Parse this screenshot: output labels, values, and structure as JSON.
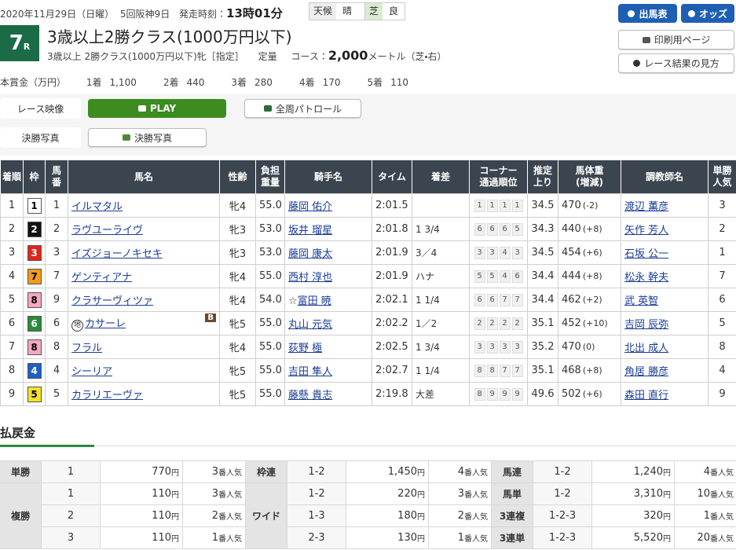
{
  "header": {
    "date": "2020年11月29日（日曜）",
    "meeting": "5回阪神9日",
    "post_time_label": "発走時刻：",
    "post_time": "13時01分",
    "weather_label": "天候",
    "weather": "晴",
    "surface": "芝",
    "going": "良",
    "race_number": "7",
    "race_suffix": "R",
    "title": "3歳以上2勝クラス(1000万円以下)",
    "conditions": "3歳以上 2勝クラス(1000万円以下)牝［指定］",
    "weight_rule": "定量",
    "course_label": "コース：",
    "distance": "2,000",
    "course_detail": "メートル（芝・右）"
  },
  "prize": {
    "label": "本賞金（万円）",
    "items": [
      {
        "place": "1着",
        "amount": "1,100"
      },
      {
        "place": "2着",
        "amount": "440"
      },
      {
        "place": "3着",
        "amount": "280"
      },
      {
        "place": "4着",
        "amount": "170"
      },
      {
        "place": "5着",
        "amount": "110"
      }
    ]
  },
  "nav_buttons": [
    "出馬表",
    "オッズ",
    "印刷用ページ",
    "レース結果の見方"
  ],
  "media": {
    "video_label": "レース映像",
    "play": "PLAY",
    "patrol": "全周パトロール",
    "photo_label": "決勝写真",
    "photo_button": "決勝写真"
  },
  "table": {
    "headers": [
      [
        "着順"
      ],
      [
        "枠"
      ],
      [
        "馬",
        "番"
      ],
      [
        "馬名"
      ],
      [
        "性齢"
      ],
      [
        "負担",
        "重量"
      ],
      [
        "騎手名"
      ],
      [
        "タイム"
      ],
      [
        "着差"
      ],
      [
        "コーナー",
        "通過順位"
      ],
      [
        "推定",
        "上り"
      ],
      [
        "馬体重",
        "(増減)"
      ],
      [
        "調教師名"
      ],
      [
        "単勝",
        "人気"
      ]
    ],
    "rows": [
      {
        "rank": "1",
        "frame": "1",
        "number": "1",
        "horse": "イルマタル",
        "sex_age": "牝4",
        "weight_carried": "55.0",
        "jockey": "藤岡 佑介",
        "time": "2:01.5",
        "corners": [
          "1",
          "1",
          "1",
          "1"
        ],
        "last3f": "34.5",
        "body_weight": "470",
        "weight_change": "(-2)",
        "trainer": "渡辺 薫彦",
        "popularity": "3"
      },
      {
        "rank": "2",
        "frame": "2",
        "number": "2",
        "horse": "ラヴユーライヴ",
        "sex_age": "牝3",
        "weight_carried": "53.0",
        "jockey": "坂井 瑠星",
        "time": "2:01.8",
        "margin": "1 3/4",
        "corners": [
          "6",
          "6",
          "6",
          "5"
        ],
        "last3f": "34.3",
        "body_weight": "440",
        "weight_change": "(+8)",
        "trainer": "矢作 芳人",
        "popularity": "2"
      },
      {
        "rank": "3",
        "frame": "3",
        "number": "3",
        "horse": "イズジョーノキセキ",
        "sex_age": "牝3",
        "weight_carried": "53.0",
        "jockey": "藤岡 康太",
        "time": "2:01.9",
        "margin": "3／4",
        "corners": [
          "3",
          "3",
          "4",
          "3"
        ],
        "last3f": "34.5",
        "body_weight": "454",
        "weight_change": "(+6)",
        "trainer": "石坂 公一",
        "popularity": "1"
      },
      {
        "rank": "4",
        "frame": "7",
        "number": "7",
        "horse": "ゲンティアナ",
        "sex_age": "牝4",
        "weight_carried": "55.0",
        "jockey": "西村 淳也",
        "time": "2:01.9",
        "margin": "ハナ",
        "corners": [
          "5",
          "5",
          "4",
          "6"
        ],
        "last3f": "34.4",
        "body_weight": "444",
        "weight_change": "(+8)",
        "trainer": "松永 幹夫",
        "popularity": "7"
      },
      {
        "rank": "5",
        "frame": "8",
        "number": "9",
        "horse": "クラサーヴィツァ",
        "sex_age": "牝4",
        "weight_carried": "54.0",
        "jockey_mark": "☆",
        "jockey": "富田 暁",
        "time": "2:02.1",
        "margin": "1 1/4",
        "corners": [
          "6",
          "6",
          "7",
          "7"
        ],
        "last3f": "34.4",
        "body_weight": "462",
        "weight_change": "(+2)",
        "trainer": "武 英智",
        "popularity": "6"
      },
      {
        "rank": "6",
        "frame": "6",
        "number": "6",
        "horse_mark": "地",
        "horse": "カサーレ",
        "blinker": "B",
        "sex_age": "牝5",
        "weight_carried": "55.0",
        "jockey": "丸山 元気",
        "time": "2:02.2",
        "margin": "1／2",
        "corners": [
          "2",
          "2",
          "2",
          "2"
        ],
        "last3f": "35.1",
        "body_weight": "452",
        "weight_change": "(+10)",
        "trainer": "吉岡 辰弥",
        "popularity": "5"
      },
      {
        "rank": "7",
        "frame": "8",
        "number": "8",
        "horse": "フラル",
        "sex_age": "牝4",
        "weight_carried": "55.0",
        "jockey": "荻野 極",
        "time": "2:02.5",
        "margin": "1 3/4",
        "corners": [
          "3",
          "3",
          "3",
          "3"
        ],
        "last3f": "35.2",
        "body_weight": "470",
        "weight_change": "(0)",
        "trainer": "北出 成人",
        "popularity": "8"
      },
      {
        "rank": "8",
        "frame": "4",
        "number": "4",
        "horse": "シーリア",
        "sex_age": "牝5",
        "weight_carried": "55.0",
        "jockey": "吉田 隼人",
        "time": "2:02.7",
        "margin": "1 1/4",
        "corners": [
          "8",
          "8",
          "7",
          "7"
        ],
        "last3f": "35.1",
        "body_weight": "468",
        "weight_change": "(+8)",
        "trainer": "角居 勝彦",
        "popularity": "4"
      },
      {
        "rank": "9",
        "frame": "5",
        "number": "5",
        "horse": "カラリエーヴァ",
        "sex_age": "牝5",
        "weight_carried": "55.0",
        "jockey": "藤懸 貴志",
        "time": "2:19.8",
        "margin": "大差",
        "corners": [
          "8",
          "9",
          "9",
          "9"
        ],
        "last3f": "49.6",
        "body_weight": "502",
        "weight_change": "(+6)",
        "trainer": "森田 直行",
        "popularity": "9"
      }
    ]
  },
  "payout": {
    "title": "払戻金",
    "yen": "円",
    "pop_suffix": "番人気",
    "columns": [
      [
        {
          "type": "単勝",
          "entries": [
            {
              "combo": "1",
              "amount": "770",
              "pop": "3"
            }
          ]
        },
        {
          "type": "複勝",
          "entries": [
            {
              "combo": "1",
              "amount": "110",
              "pop": "3"
            },
            {
              "combo": "2",
              "amount": "110",
              "pop": "2"
            },
            {
              "combo": "3",
              "amount": "110",
              "pop": "1"
            }
          ]
        }
      ],
      [
        {
          "type": "枠連",
          "entries": [
            {
              "combo": "1-2",
              "amount": "1,450",
              "pop": "4"
            }
          ]
        },
        {
          "type": "ワイド",
          "entries": [
            {
              "combo": "1-2",
              "amount": "220",
              "pop": "3"
            },
            {
              "combo": "1-3",
              "amount": "180",
              "pop": "2"
            },
            {
              "combo": "2-3",
              "amount": "130",
              "pop": "1"
            }
          ]
        }
      ],
      [
        {
          "type": "馬連",
          "entries": [
            {
              "combo": "1-2",
              "amount": "1,240",
              "pop": "4"
            }
          ]
        },
        {
          "type": "馬単",
          "entries": [
            {
              "combo": "1-2",
              "amount": "3,310",
              "pop": "10"
            }
          ]
        },
        {
          "type": "3連複",
          "entries": [
            {
              "combo": "1-2-3",
              "amount": "320",
              "pop": "1"
            }
          ]
        },
        {
          "type": "3連単",
          "entries": [
            {
              "combo": "1-2-3",
              "amount": "5,520",
              "pop": "20"
            }
          ]
        }
      ]
    ]
  }
}
